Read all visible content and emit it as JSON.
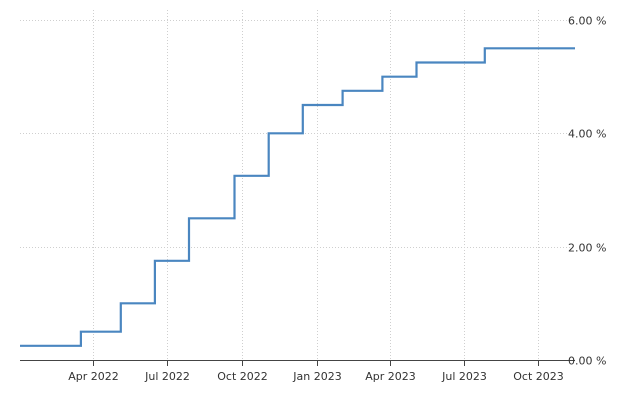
{
  "chart_data": {
    "type": "line",
    "step": true,
    "title": "",
    "xlabel": "",
    "ylabel": "",
    "x_range": [
      "2022-01-01",
      "2023-11-15"
    ],
    "ylim": [
      0,
      6
    ],
    "y_ticks": [
      {
        "value": 0,
        "label": "0.00 %"
      },
      {
        "value": 2,
        "label": "2.00 %"
      },
      {
        "value": 4,
        "label": "4.00 %"
      },
      {
        "value": 6,
        "label": "6.00 %"
      }
    ],
    "x_ticks": [
      {
        "date": "2022-04-01",
        "label": "Apr 2022"
      },
      {
        "date": "2022-07-01",
        "label": "Jul 2022"
      },
      {
        "date": "2022-10-01",
        "label": "Oct 2022"
      },
      {
        "date": "2023-01-01",
        "label": "Jan 2023"
      },
      {
        "date": "2023-04-01",
        "label": "Apr 2023"
      },
      {
        "date": "2023-07-01",
        "label": "Jul 2023"
      },
      {
        "date": "2023-10-01",
        "label": "Oct 2023"
      }
    ],
    "grid": true,
    "legend": "none",
    "series": [
      {
        "color": "#4a86c0",
        "points": [
          {
            "date": "2022-01-01",
            "value": 0.25
          },
          {
            "date": "2022-03-17",
            "value": 0.5
          },
          {
            "date": "2022-05-05",
            "value": 1.0
          },
          {
            "date": "2022-06-16",
            "value": 1.75
          },
          {
            "date": "2022-07-28",
            "value": 2.5
          },
          {
            "date": "2022-09-22",
            "value": 3.25
          },
          {
            "date": "2022-11-03",
            "value": 4.0
          },
          {
            "date": "2022-12-15",
            "value": 4.5
          },
          {
            "date": "2023-02-02",
            "value": 4.75
          },
          {
            "date": "2023-03-23",
            "value": 5.0
          },
          {
            "date": "2023-05-04",
            "value": 5.25
          },
          {
            "date": "2023-07-27",
            "value": 5.5
          },
          {
            "date": "2023-11-15",
            "value": 5.5
          }
        ]
      }
    ]
  }
}
